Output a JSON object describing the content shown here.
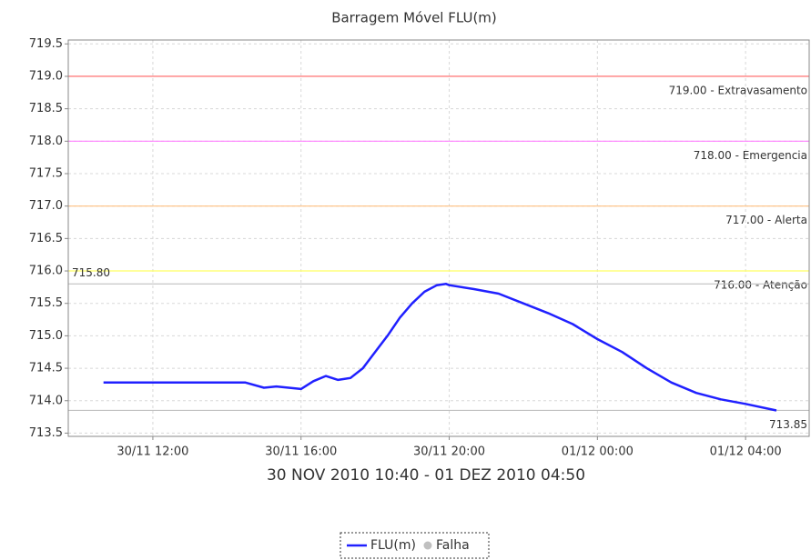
{
  "chart_data": {
    "type": "line",
    "title": "Barragem Móvel FLU(m)",
    "xlabel": "30 NOV 2010 10:40 - 01 DEZ 2010 04:50",
    "x": [
      "2010-11-30T10:40",
      "2010-11-30T11:00",
      "2010-11-30T12:00",
      "2010-11-30T13:00",
      "2010-11-30T14:00",
      "2010-11-30T14:30",
      "2010-11-30T15:00",
      "2010-11-30T15:20",
      "2010-11-30T15:40",
      "2010-11-30T16:00",
      "2010-11-30T16:20",
      "2010-11-30T16:40",
      "2010-11-30T17:00",
      "2010-11-30T17:20",
      "2010-11-30T17:40",
      "2010-11-30T18:00",
      "2010-11-30T18:20",
      "2010-11-30T18:40",
      "2010-11-30T19:00",
      "2010-11-30T19:20",
      "2010-11-30T19:40",
      "2010-11-30T19:55",
      "2010-11-30T20:00",
      "2010-11-30T20:40",
      "2010-11-30T21:20",
      "2010-11-30T22:00",
      "2010-11-30T22:40",
      "2010-11-30T23:20",
      "2010-12-01T00:00",
      "2010-12-01T00:40",
      "2010-12-01T01:20",
      "2010-12-01T02:00",
      "2010-12-01T02:40",
      "2010-12-01T03:20",
      "2010-12-01T04:00",
      "2010-12-01T04:50"
    ],
    "series": [
      {
        "name": "FLU(m)",
        "color": "#2020ff",
        "values": [
          714.28,
          714.28,
          714.28,
          714.28,
          714.28,
          714.28,
          714.2,
          714.22,
          714.2,
          714.18,
          714.3,
          714.38,
          714.32,
          714.35,
          714.5,
          714.75,
          715.0,
          715.28,
          715.5,
          715.68,
          715.78,
          715.8,
          715.78,
          715.72,
          715.65,
          715.5,
          715.35,
          715.18,
          714.95,
          714.75,
          714.5,
          714.28,
          714.12,
          714.02,
          713.95,
          713.85
        ]
      }
    ],
    "legend_items": [
      {
        "name": "Falha",
        "color": "#c0c0c0"
      }
    ],
    "thresholds": [
      {
        "value": 719,
        "label": "719.00 - Extravasamento",
        "color": "#ff6060"
      },
      {
        "value": 718,
        "label": "718.00 - Emergencia",
        "color": "#ff80ff"
      },
      {
        "value": 717,
        "label": "717.00 - Alerta",
        "color": "#ffc080"
      },
      {
        "value": 716,
        "label": "716.00 - Atenção",
        "color": "#ffff60"
      }
    ],
    "markers": [
      {
        "value": 715.8,
        "label": "715.80",
        "color": "#c0c0c0"
      },
      {
        "value": 713.85,
        "label": "713.85",
        "color": "#c0c0c0"
      }
    ],
    "xlim": [
      "2010-11-30T09:43",
      "2010-12-01T05:43"
    ],
    "xticks": [
      {
        "value": "2010-11-30T12:00",
        "label": "30/11 12:00"
      },
      {
        "value": "2010-11-30T16:00",
        "label": "30/11 16:00"
      },
      {
        "value": "2010-11-30T20:00",
        "label": "30/11 20:00"
      },
      {
        "value": "2010-12-01T00:00",
        "label": "01/12 00:00"
      },
      {
        "value": "2010-12-01T04:00",
        "label": "01/12 04:00"
      }
    ],
    "ylim": [
      713.45,
      719.56
    ],
    "yticks": [
      713.5,
      {
        "value": 714,
        "label": "714.0"
      },
      714.5,
      {
        "value": 715,
        "label": "715.0"
      },
      715.5,
      {
        "value": 716,
        "label": "716.0"
      },
      716.5,
      {
        "value": 717,
        "label": "717.0"
      },
      717.5,
      {
        "value": 718,
        "label": "718.0"
      },
      718.5,
      {
        "value": 719,
        "label": "719.0"
      },
      719.5
    ],
    "grid": true
  }
}
